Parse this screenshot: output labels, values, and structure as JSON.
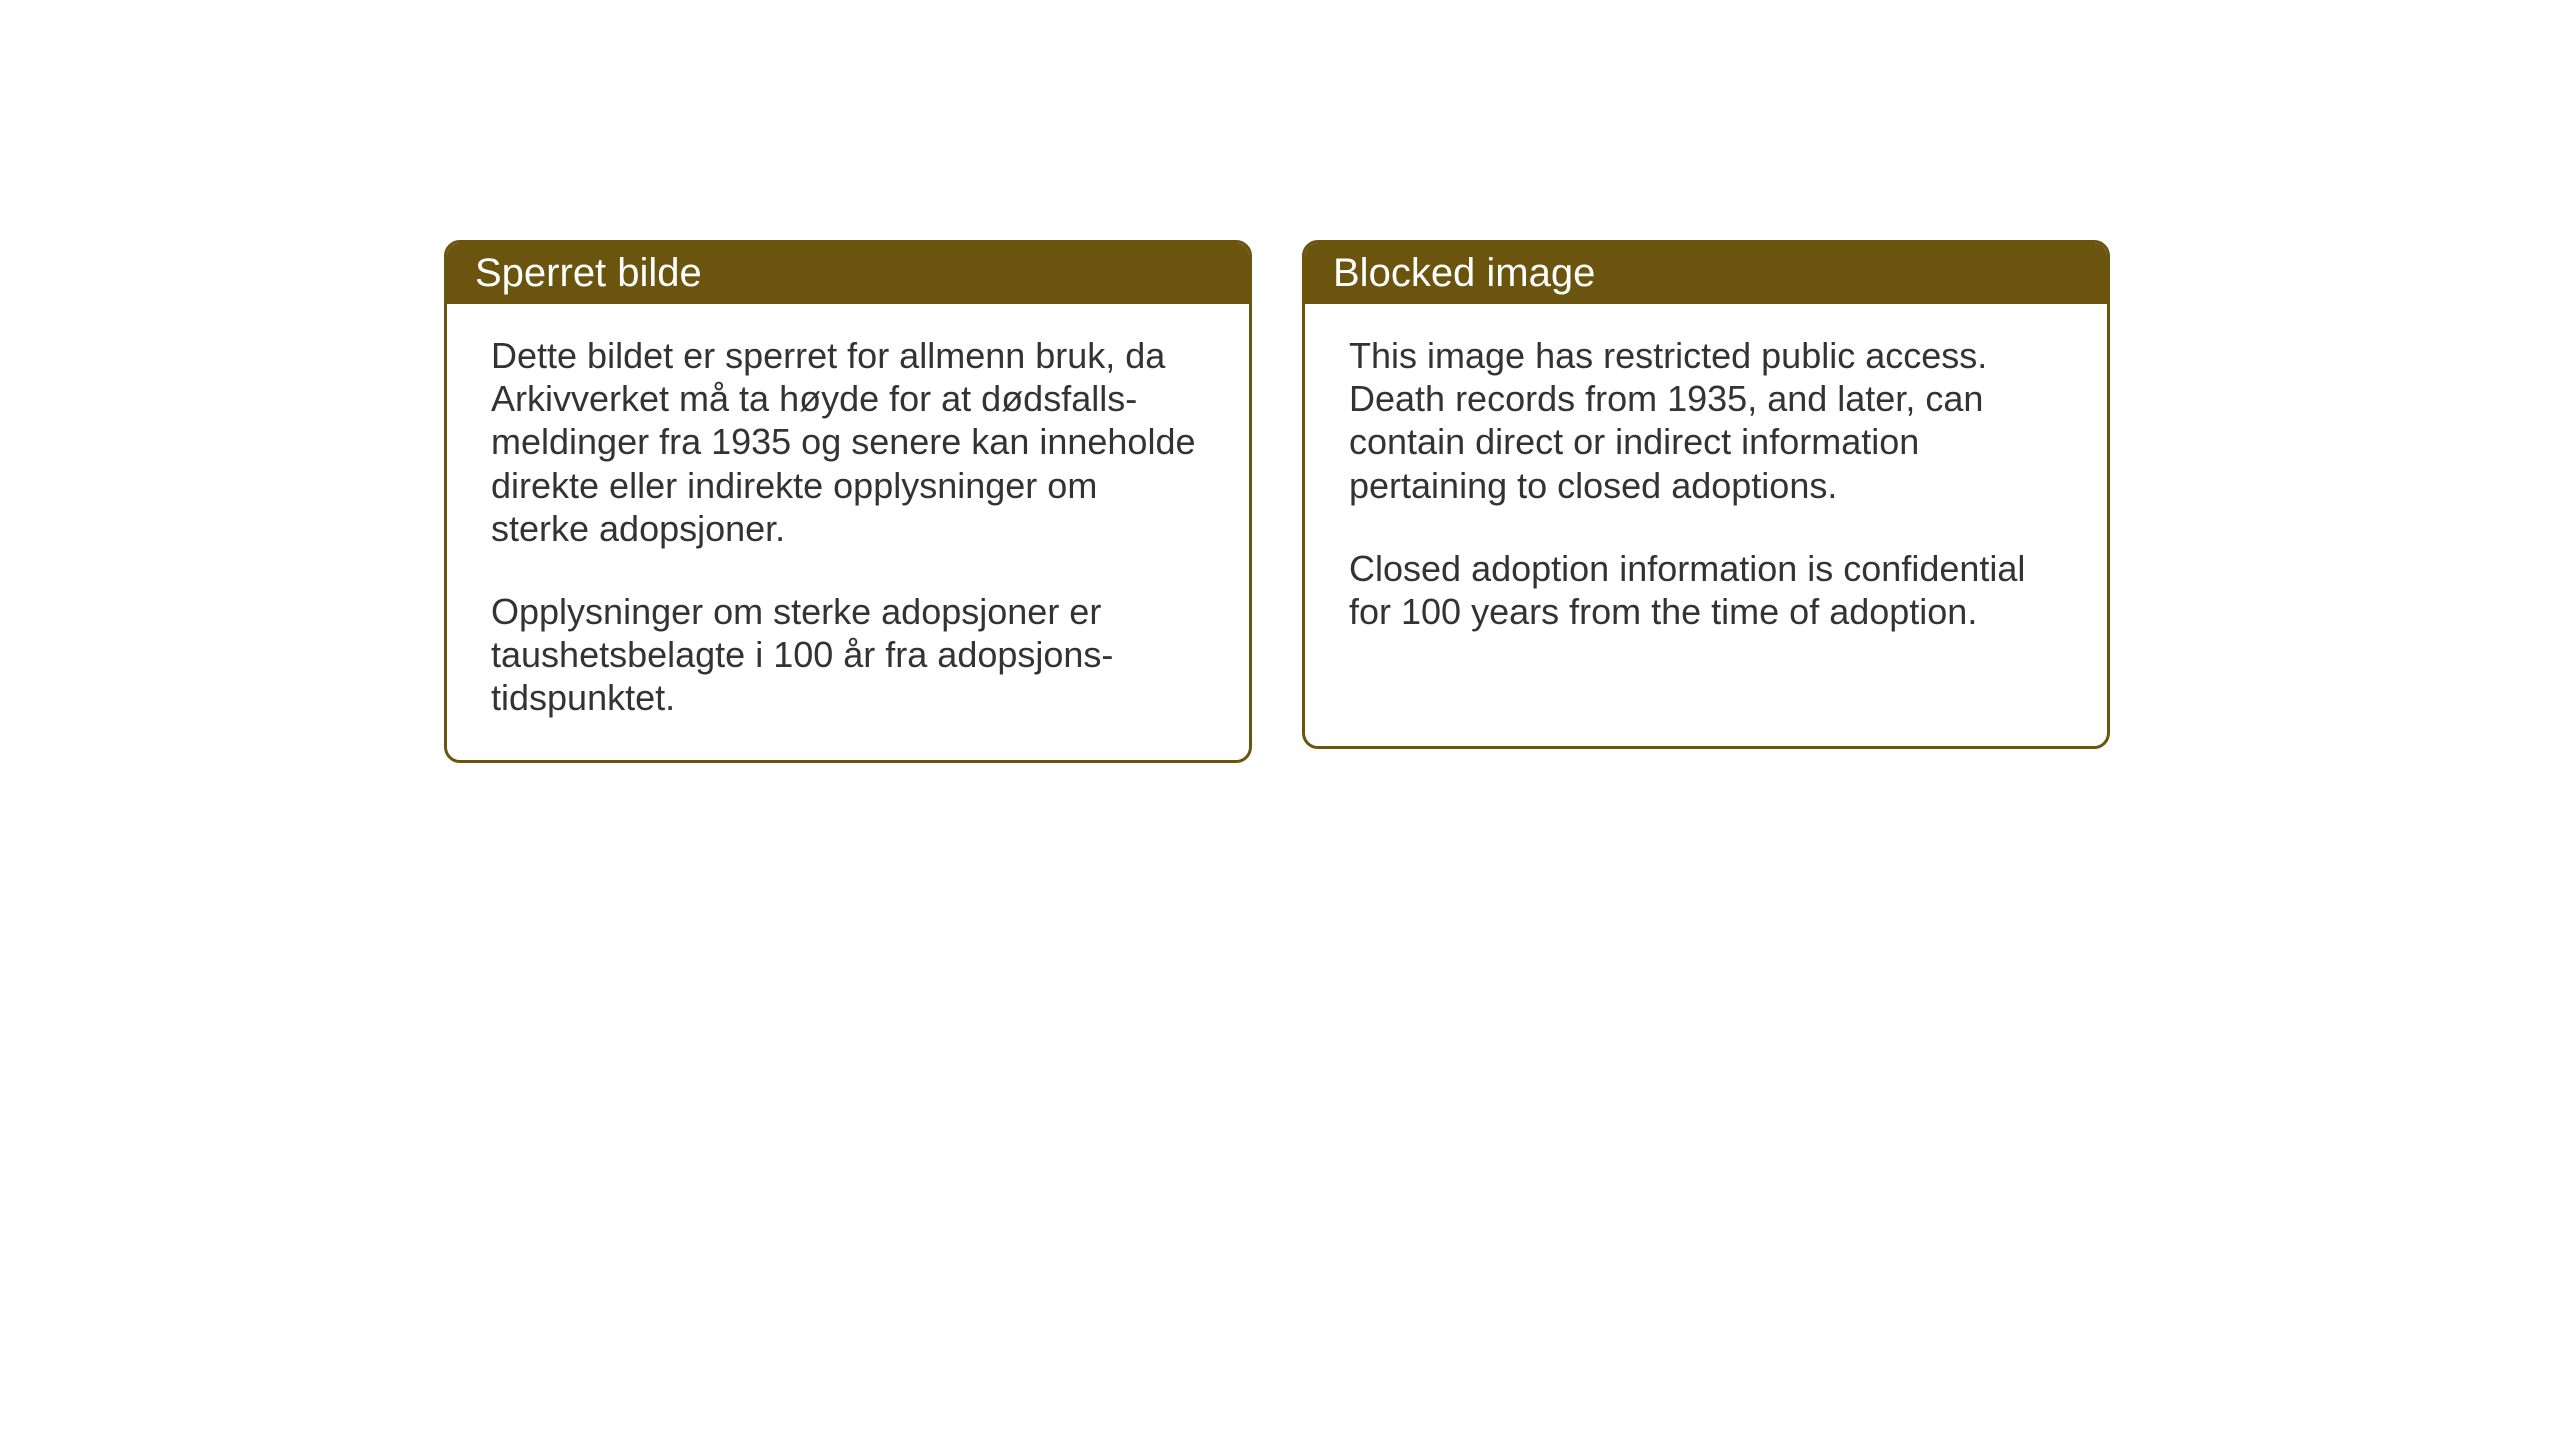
{
  "cards": {
    "left": {
      "title": "Sperret bilde",
      "paragraph1": "Dette bildet er sperret for allmenn bruk, da Arkivverket må ta høyde for at dødsfalls-meldinger fra 1935 og senere kan inneholde direkte eller indirekte opplysninger om sterke adopsjoner.",
      "paragraph2": "Opplysninger om sterke adopsjoner er taushetsbelagte i 100 år fra adopsjons-tidspunktet."
    },
    "right": {
      "title": "Blocked image",
      "paragraph1": "This image has restricted public access. Death records from 1935, and later, can contain direct or indirect information pertaining to closed adoptions.",
      "paragraph2": "Closed adoption information is confidential for 100 years from the time of adoption."
    }
  },
  "styling": {
    "header_bg_color": "#6b540e",
    "header_text_color": "#ffffff",
    "border_color": "#6b540e",
    "body_bg_color": "#ffffff",
    "body_text_color": "#333333",
    "page_bg_color": "#ffffff",
    "border_radius": 16,
    "header_fontsize": 40,
    "body_fontsize": 36
  }
}
